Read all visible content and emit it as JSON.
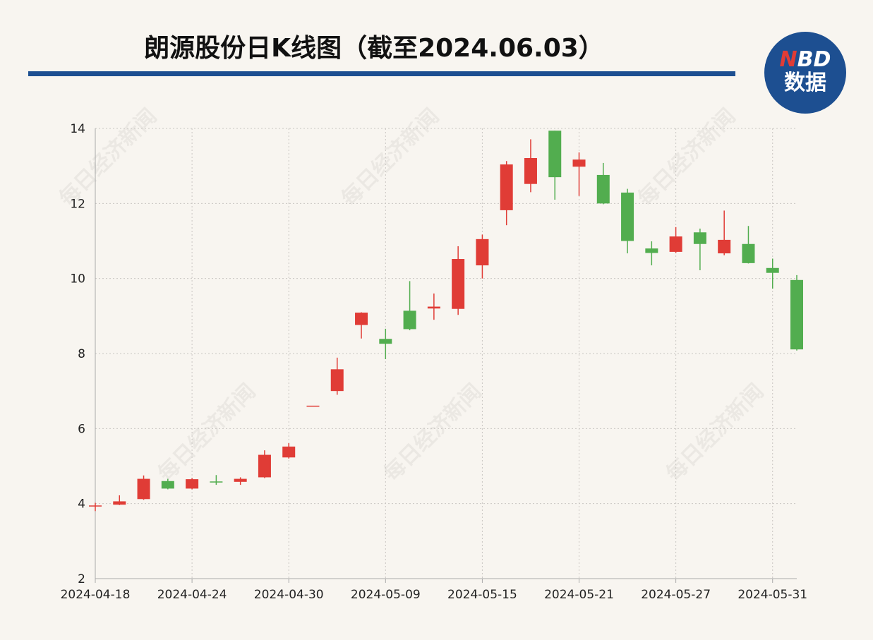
{
  "chart_data": {
    "type": "candlestick",
    "title": "朗源股份日K线图（截至2024.06.03）",
    "watermark": "每日经济新闻",
    "logo": {
      "brand": "NBD",
      "text": "数据"
    },
    "categories": [
      "2024-04-18",
      null,
      null,
      null,
      "2024-04-24",
      null,
      null,
      null,
      "2024-04-30",
      null,
      null,
      null,
      "2024-05-09",
      null,
      null,
      null,
      "2024-05-15",
      null,
      null,
      null,
      "2024-05-21",
      null,
      null,
      null,
      "2024-05-27",
      null,
      null,
      null,
      "2024-05-31",
      null
    ],
    "open": [
      3.93,
      3.97,
      4.12,
      4.6,
      4.4,
      4.59,
      4.58,
      4.7,
      5.23,
      6.61,
      7.0,
      8.76,
      8.39,
      9.14,
      9.2,
      9.19,
      10.35,
      11.82,
      12.52,
      13.94,
      12.98,
      12.76,
      12.29,
      10.8,
      10.71,
      11.23,
      10.67,
      10.92,
      10.28,
      9.96
    ],
    "high": [
      4.02,
      4.22,
      4.75,
      4.66,
      4.68,
      4.76,
      4.7,
      5.42,
      5.61,
      6.61,
      7.89,
      9.1,
      8.66,
      9.93,
      9.6,
      10.86,
      11.17,
      13.13,
      13.71,
      13.94,
      13.36,
      13.08,
      12.39,
      10.99,
      11.37,
      11.33,
      11.81,
      11.4,
      10.53,
      10.09
    ],
    "low": [
      3.8,
      3.96,
      4.1,
      4.38,
      4.38,
      4.5,
      4.5,
      4.68,
      5.2,
      6.61,
      6.9,
      8.4,
      7.85,
      8.62,
      8.9,
      9.03,
      10.0,
      11.42,
      12.3,
      12.1,
      12.2,
      11.98,
      10.67,
      10.35,
      10.68,
      10.22,
      10.62,
      10.4,
      9.73,
      8.08
    ],
    "close": [
      3.95,
      4.06,
      4.66,
      4.4,
      4.65,
      4.57,
      4.66,
      5.3,
      5.52,
      6.61,
      7.58,
      9.09,
      8.26,
      8.65,
      9.25,
      10.52,
      11.05,
      13.04,
      13.21,
      12.7,
      13.17,
      12.0,
      11.0,
      10.68,
      11.12,
      10.92,
      11.03,
      10.41,
      10.15,
      8.11
    ],
    "up_color": "#e03c36",
    "down_color": "#52ad4f",
    "ylim": [
      2,
      14
    ],
    "yticks": [
      2,
      4,
      6,
      8,
      10,
      12,
      14
    ],
    "grid": true
  }
}
